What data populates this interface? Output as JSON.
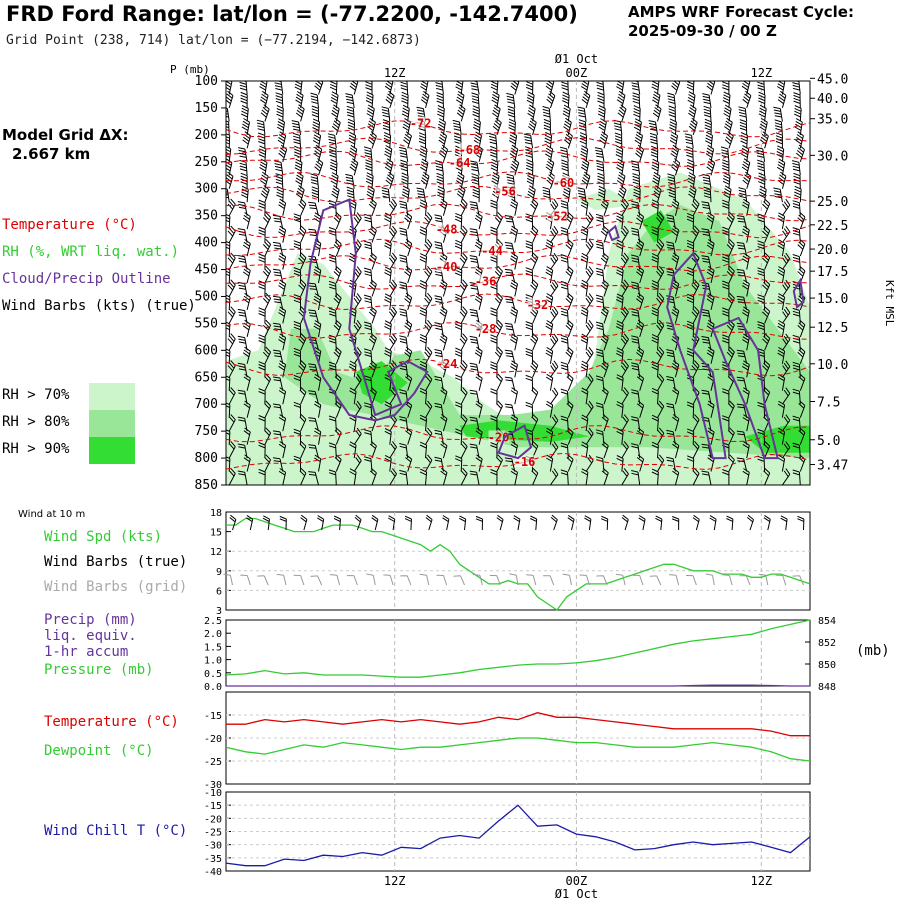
{
  "header": {
    "title": "FRD Ford Range:  lat/lon = (-77.2200, -142.7400)",
    "subtitle": "Grid Point (238, 714) lat/lon = (−77.2194, −142.6873)",
    "cycle_line1": "AMPS WRF Forecast Cycle:",
    "cycle_line2": "2025-09-30 / 00  Z",
    "grid_label_line1": "Model Grid ΔX:",
    "grid_label_line2": "2.667 km"
  },
  "colors": {
    "temperature": "#dd0000",
    "rh": "#33cc33",
    "cloud": "#663399",
    "rh70": "#ccf5cc",
    "rh80": "#99e699",
    "rh90": "#33dd33",
    "windchill": "#1a1aaa",
    "grid_barb": "#999999"
  },
  "legend": {
    "temperature": "Temperature (°C)",
    "rh": "RH (%, WRT liq. wat.)",
    "cloud": "Cloud/Precip Outline",
    "wind": "Wind Barbs (kts) (true)",
    "rh70": "RH > 70%",
    "rh80": "RH > 80%",
    "rh90": "RH > 90%"
  },
  "time_axis": {
    "top_labels": [
      "12Z",
      "00Z",
      "12Z"
    ],
    "date_label": "Ø1 Oct",
    "bottom_labels": [
      "12Z",
      "00Z",
      "12Z"
    ],
    "date_bottom": "Ø1 Oct"
  },
  "chart_data": [
    {
      "type": "heatmap",
      "name": "cross_section",
      "yunit": "P (mb)",
      "pressure_ticks": [
        100,
        150,
        200,
        250,
        300,
        350,
        400,
        450,
        500,
        550,
        600,
        650,
        700,
        750,
        800,
        850
      ],
      "height_unit": "Kft MSL",
      "height_ticks": [
        "45.0",
        "40.0",
        "35.0",
        "30.0",
        "25.0",
        "22.5",
        "20.0",
        "17.5",
        "15.0",
        "12.5",
        "10.0",
        "7.5",
        "5.0",
        "3.47"
      ],
      "temperature_contours": [
        {
          "label": "-72",
          "p": 190
        },
        {
          "label": "-68",
          "p": 222
        },
        {
          "label": "-64",
          "p": 246
        },
        {
          "label": "-60",
          "p": 285
        },
        {
          "label": "-56",
          "p": 312
        },
        {
          "label": "-52",
          "p": 345
        },
        {
          "label": "-48",
          "p": 377
        },
        {
          "label": "-44",
          "p": 410
        },
        {
          "label": "-40",
          "p": 440
        },
        {
          "label": "-36",
          "p": 475
        },
        {
          "label": "-32",
          "p": 512
        },
        {
          "label": "-28",
          "p": 565
        },
        {
          "label": "-24",
          "p": 633
        },
        {
          "label": "-20",
          "p": 756
        },
        {
          "label": "-16",
          "p": 808
        }
      ]
    },
    {
      "type": "line",
      "name": "wind10m",
      "title": "Wind at 10 m",
      "label_spd": "Wind Spd (kts)",
      "label_barbs": "Wind Barbs (true)",
      "label_grid": "Wind Barbs (grid)",
      "ylim": [
        3,
        18
      ],
      "yticks": [
        3,
        6,
        9,
        12,
        15,
        18
      ],
      "x": [
        0,
        3,
        6,
        9,
        12,
        15,
        18,
        21,
        24,
        27,
        30,
        33,
        36,
        39,
        42,
        45,
        48,
        51,
        54,
        57,
        60,
        63,
        66,
        69,
        72,
        75,
        78,
        81,
        84,
        87,
        90,
        93,
        96,
        99,
        102,
        105,
        108,
        111,
        114,
        117,
        120,
        123,
        126,
        129,
        132,
        135,
        138,
        141,
        144,
        147,
        150,
        153,
        156,
        159,
        162,
        165,
        168,
        171,
        174,
        177,
        180
      ],
      "series": [
        {
          "name": "Wind Spd (kts)",
          "values": [
            16,
            16,
            17,
            17,
            16.5,
            16,
            15.5,
            15,
            15,
            15,
            15.5,
            16,
            16,
            16,
            15.5,
            15,
            15,
            14.5,
            14,
            13.5,
            13,
            12,
            13,
            12,
            10,
            9,
            8,
            7,
            7,
            7.5,
            7,
            7,
            5,
            4,
            3,
            5,
            6,
            7,
            7,
            7,
            7.5,
            8,
            8.5,
            9,
            9.5,
            10,
            10,
            9.5,
            9,
            9,
            9,
            8.5,
            8.5,
            8.5,
            8,
            8,
            8.5,
            8.5,
            8,
            7.5,
            7
          ]
        }
      ]
    },
    {
      "type": "line",
      "name": "precip_pressure",
      "label_precip": "Precip (mm)",
      "label_liq": "liq. equiv.",
      "label_accum": "1-hr accum",
      "label_pressure": "Pressure (mb)",
      "right_unit": "(mb)",
      "ylim_precip": [
        0,
        2.5
      ],
      "yticks_precip": [
        "0.0",
        "0.5",
        "1.0",
        "1.5",
        "2.0",
        "2.5"
      ],
      "ylim_pressure": [
        848,
        854
      ],
      "yticks_pressure": [
        848,
        850,
        852,
        854
      ],
      "x": [
        0,
        6,
        12,
        18,
        24,
        30,
        36,
        42,
        48,
        54,
        60,
        66,
        72,
        78,
        84,
        90,
        96,
        102,
        108,
        114,
        120,
        126,
        132,
        138,
        144,
        150,
        156,
        162,
        168,
        174,
        180
      ],
      "series": [
        {
          "name": "Pressure (mb)",
          "values": [
            849.0,
            849.1,
            849.4,
            849.1,
            849.2,
            849.0,
            849.0,
            849.0,
            848.9,
            848.8,
            848.8,
            849.0,
            849.2,
            849.5,
            849.7,
            849.9,
            850.0,
            850.0,
            850.1,
            850.3,
            850.6,
            851.0,
            851.4,
            851.8,
            852.1,
            852.3,
            852.5,
            852.7,
            853.2,
            853.6,
            854.0
          ]
        },
        {
          "name": "Precip (mm)",
          "values": [
            0,
            0,
            0,
            0,
            0,
            0,
            0,
            0,
            0,
            0,
            0,
            0,
            0,
            0,
            0,
            0,
            0,
            0,
            0,
            0,
            0,
            0,
            0,
            0,
            0.02,
            0.03,
            0.03,
            0.03,
            0.02,
            0,
            0
          ]
        }
      ]
    },
    {
      "type": "line",
      "name": "temperature_dewpoint",
      "label_t": "Temperature (°C)",
      "label_td": "Dewpoint (°C)",
      "ylim": [
        -30,
        -10
      ],
      "yticks": [
        -30,
        -25,
        -20,
        -15
      ],
      "x": [
        0,
        6,
        12,
        18,
        24,
        30,
        36,
        42,
        48,
        54,
        60,
        66,
        72,
        78,
        84,
        90,
        96,
        102,
        108,
        114,
        120,
        126,
        132,
        138,
        144,
        150,
        156,
        162,
        168,
        174,
        180
      ],
      "series": [
        {
          "name": "Temperature (°C)",
          "values": [
            -17,
            -17,
            -16,
            -16.5,
            -16,
            -16.5,
            -17,
            -16.5,
            -16,
            -16.5,
            -16,
            -16.5,
            -17,
            -16.5,
            -15.5,
            -16,
            -14.5,
            -15.5,
            -15.5,
            -16,
            -16.5,
            -17,
            -17.5,
            -18,
            -18,
            -18,
            -18,
            -18,
            -18.5,
            -19.5,
            -19.5
          ]
        },
        {
          "name": "Dewpoint (°C)",
          "values": [
            -22,
            -23,
            -23.5,
            -22.5,
            -21.5,
            -22,
            -21,
            -21.5,
            -22,
            -22.5,
            -22,
            -22,
            -21.5,
            -21,
            -20.5,
            -20,
            -20,
            -20.5,
            -21,
            -21,
            -21.5,
            -22,
            -22,
            -22,
            -21.5,
            -21,
            -21.5,
            -22,
            -23,
            -24.5,
            -25
          ]
        }
      ]
    },
    {
      "type": "line",
      "name": "windchill",
      "label": "Wind Chill T (°C)",
      "ylim": [
        -40,
        -10
      ],
      "yticks": [
        -40,
        -35,
        -30,
        -25,
        -20,
        -15,
        -10
      ],
      "x": [
        0,
        6,
        12,
        18,
        24,
        30,
        36,
        42,
        48,
        54,
        60,
        66,
        72,
        78,
        84,
        90,
        96,
        102,
        108,
        114,
        120,
        126,
        132,
        138,
        144,
        150,
        156,
        162,
        168,
        174,
        180
      ],
      "series": [
        {
          "name": "Wind Chill T (°C)",
          "values": [
            -37,
            -38,
            -38,
            -35.5,
            -36,
            -34,
            -34.5,
            -33,
            -34,
            -31,
            -31.5,
            -27.5,
            -26.5,
            -27.5,
            -21,
            -15,
            -23,
            -22.5,
            -26,
            -27,
            -29,
            -32,
            -31.5,
            -30,
            -29,
            -30,
            -29.5,
            -29,
            -31,
            -33,
            -27
          ]
        }
      ]
    }
  ]
}
